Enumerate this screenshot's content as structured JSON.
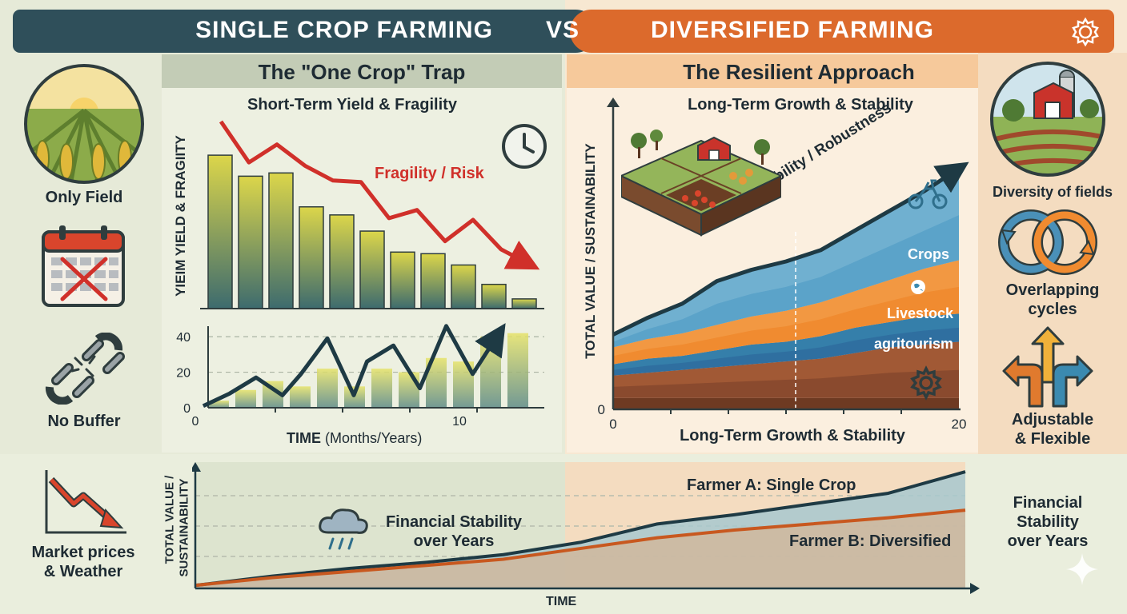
{
  "header": {
    "left_title": "SINGLE CROP FARMING",
    "vs": "VS",
    "right_title": "DIVERSIFIED FARMING",
    "settings_icon": "gear-icon"
  },
  "left_panel": {
    "subtitle": "The \"One Crop\" Trap",
    "chart_title": "Short-Term Yield & Fragility",
    "ylabel": "YIEIM YIELD & FRAGIITY",
    "risk_label": "Fragility / Risk",
    "xlabel_bold": "TIME",
    "xlabel_rest": " (Months/Years)"
  },
  "left_icons": {
    "field_label": "Only Field",
    "buffer_label": "No Buffer",
    "market_label_1": "Market prices",
    "market_label_2": "& Weather"
  },
  "right_panel": {
    "subtitle": "The Resilient Approach",
    "chart_title": "Long-Term Growth & Stability",
    "ylabel": "TOTAL VALUE / SUSTAINABILITY",
    "xlabel": "Long-Term Growth & Stability",
    "stability_label": "Stability / Robustness"
  },
  "right_icons": {
    "diversity_label": "Diversity of fields",
    "cycles_label_1": "Overlapping",
    "cycles_label_2": "cycles",
    "flex_label_1": "Adjustable",
    "flex_label_2": "& Flexible"
  },
  "bottom": {
    "ylabel_1": "TOTAL VALUE /",
    "ylabel_2": "SUSTAINABILITY",
    "center_label_1": "Financial Stability",
    "center_label_2": "over Years",
    "farmer_a": "Farmer A: Single Crop",
    "farmer_b": "Farmer B: Diversified",
    "xlabel": "TIME",
    "right_label_1": "Financial",
    "right_label_2": "Stability",
    "right_label_3": "over Years"
  },
  "colors": {
    "header_left": "#2f4f5a",
    "header_right": "#dc6a2c",
    "risk_red": "#d0302a",
    "bar_teal": "#3d6b6e",
    "bar_yellow": "#dcd64a",
    "area_blue": "#5ba3c9",
    "area_orange": "#f08b30",
    "area_brown": "#8a4a2e"
  },
  "chart_data": [
    {
      "type": "bar",
      "title": "Short-Term Yield & Fragility",
      "ylabel": "YIEIM YIELD & FRAGIITY",
      "values": [
        95,
        82,
        84,
        63,
        58,
        48,
        35,
        34,
        27,
        15,
        6
      ],
      "annotation": "Fragility / Risk",
      "risk_line": [
        100,
        75,
        86,
        73,
        64,
        63,
        41,
        46,
        27,
        40,
        22,
        13
      ]
    },
    {
      "type": "line",
      "xlabel": "TIME (Months/Years)",
      "ylim": [
        0,
        45
      ],
      "yticks": [
        0,
        20,
        40
      ],
      "xticks": [
        0,
        10
      ],
      "x": [
        0.3,
        1.3,
        2.3,
        3.3,
        4,
        5,
        6,
        6.5,
        7.5,
        8.5,
        9.5,
        10.5,
        11.5
      ],
      "y": [
        1,
        8,
        17,
        7,
        19,
        39,
        7,
        26,
        35,
        11,
        46,
        19,
        42
      ],
      "bars": [
        4,
        10,
        15,
        12,
        22,
        12,
        22,
        20,
        28,
        26,
        40,
        42
      ]
    },
    {
      "type": "area",
      "title": "Long-Term Growth & Stability",
      "xlabel": "Long-Term Growth & Stability",
      "ylabel": "TOTAL VALUE / SUSTAINABILITY",
      "xlim": [
        0,
        20
      ],
      "xticks": [
        0,
        20
      ],
      "yticks": [
        0
      ],
      "x": [
        0,
        2,
        4,
        6,
        8,
        10,
        12,
        14,
        16,
        18,
        20
      ],
      "series": [
        {
          "name": "agritourism",
          "values": [
            8,
            9,
            10,
            11,
            12,
            13,
            14,
            16,
            18,
            19,
            20
          ]
        },
        {
          "name": "Livestock",
          "values": [
            4,
            5,
            5,
            6,
            7,
            7,
            8,
            9,
            9,
            10,
            10
          ]
        },
        {
          "name": "Crops",
          "values": [
            6,
            7,
            8,
            9,
            10,
            11,
            12,
            13,
            15,
            17,
            19
          ]
        },
        {
          "name": "",
          "values": [
            4,
            7,
            10,
            15,
            16,
            17,
            18,
            21,
            24,
            27,
            32
          ]
        }
      ],
      "annotation": "Stability / Robustness"
    },
    {
      "type": "line",
      "ylabel": "TOTAL VALUE / SUSTAINABILITY",
      "xlabel": "TIME",
      "series": [
        {
          "name": "Farmer A: Single Crop",
          "values": [
            2,
            8,
            13,
            17,
            22,
            30,
            42,
            48,
            55,
            62,
            76
          ]
        },
        {
          "name": "Farmer B: Diversified",
          "values": [
            2,
            7,
            11,
            15,
            19,
            26,
            33,
            38,
            42,
            46,
            51
          ]
        }
      ]
    }
  ]
}
